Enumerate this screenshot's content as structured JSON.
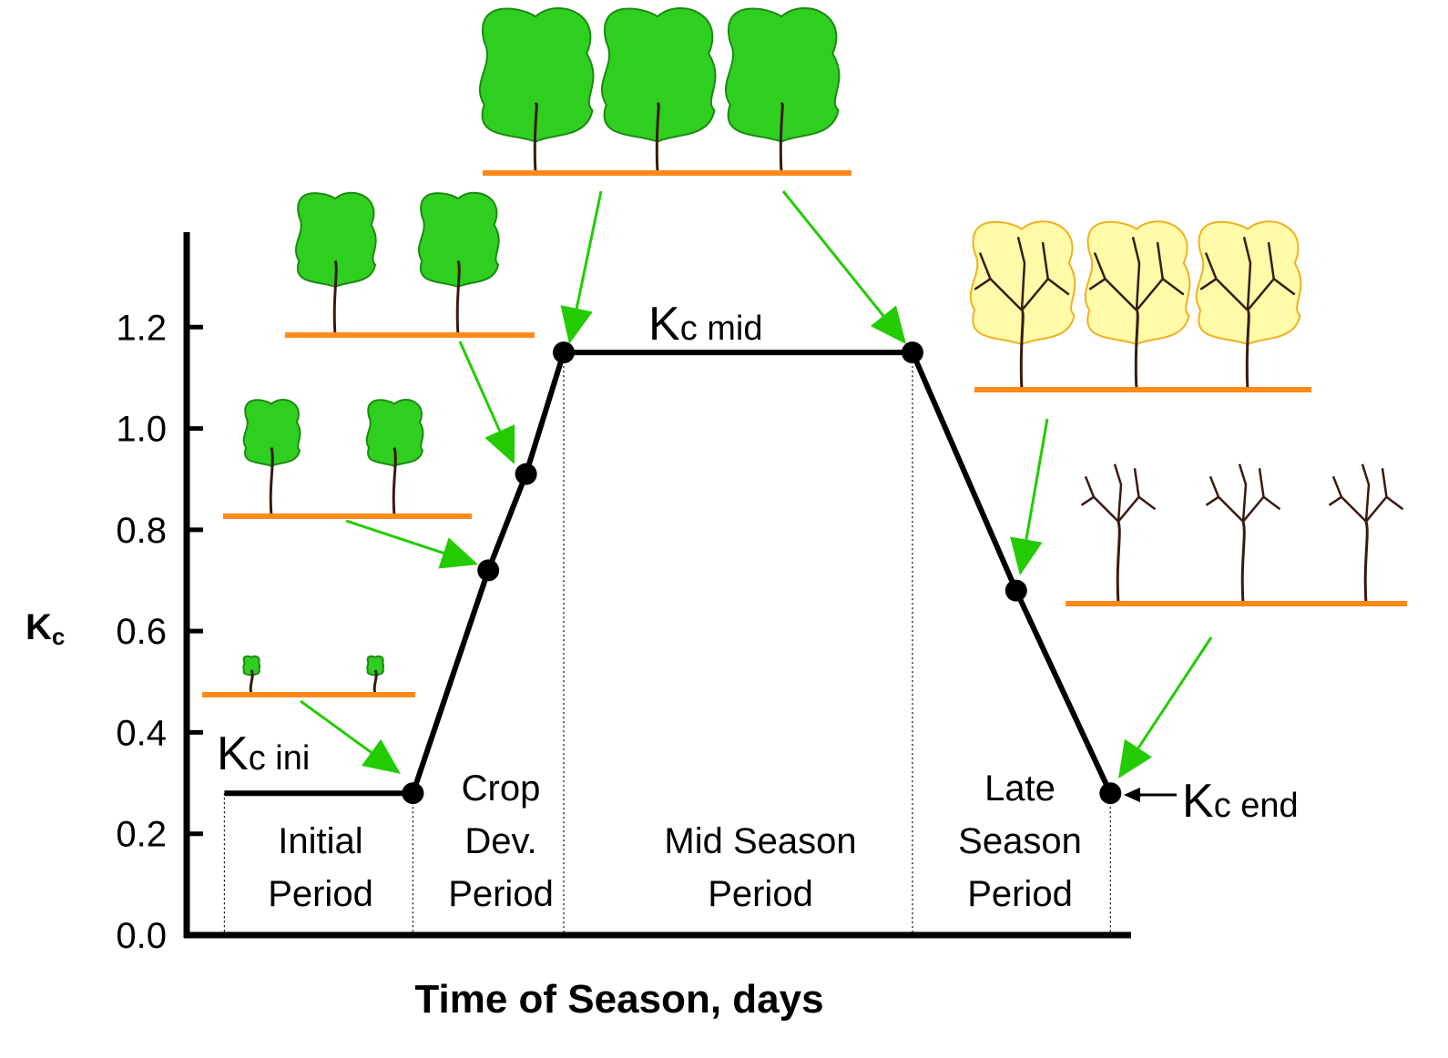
{
  "chart_data": {
    "type": "line",
    "x_label": "Time of Season, days",
    "y_label": {
      "main": "K",
      "sub": "c"
    },
    "x": [
      4,
      24,
      32,
      36,
      40,
      77,
      88,
      98
    ],
    "series": [
      {
        "color": "#000000",
        "values": [
          0.28,
          0.28,
          0.72,
          0.91,
          1.15,
          1.15,
          0.68,
          0.28
        ]
      }
    ],
    "xlim": [
      0,
      100
    ],
    "ylim": [
      0,
      1.4
    ],
    "yticks": [
      {
        "value": 0,
        "label": "0.0"
      },
      0.2,
      0.4,
      0.6,
      0.8,
      {
        "value": 1,
        "label": "1.0"
      },
      1.2
    ],
    "kc_labels": [
      {
        "main": "K",
        "sub": "c ini"
      },
      {
        "main": "K",
        "sub": "c mid"
      },
      {
        "main": "K",
        "sub": "c end"
      }
    ],
    "periods": [
      [
        "Initial",
        "Period"
      ],
      [
        "Crop",
        "Dev.",
        "Period"
      ],
      [
        "Mid Season",
        "Period"
      ],
      [
        "Late",
        "Season",
        "Period"
      ]
    ]
  }
}
